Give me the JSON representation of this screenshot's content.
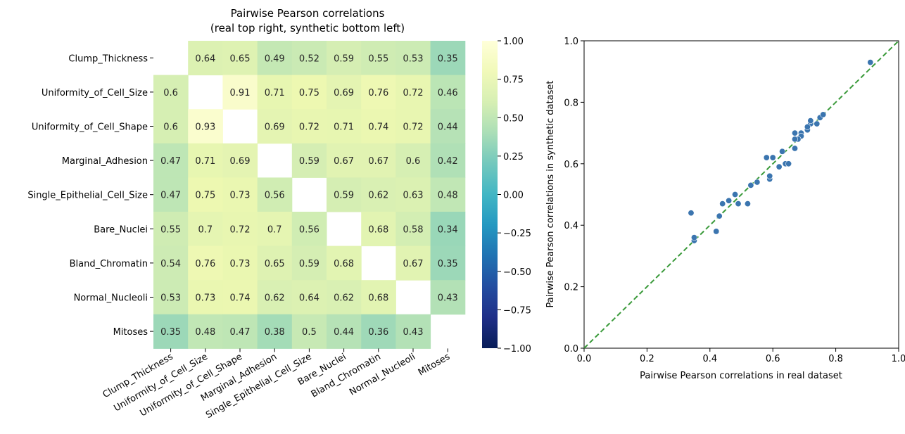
{
  "chart_data": [
    {
      "type": "heatmap",
      "title": "Pairwise Pearson correlations",
      "subtitle": "(real top right, synthetic bottom left)",
      "row_labels": [
        "Clump_Thickness",
        "Uniformity_of_Cell_Size",
        "Uniformity_of_Cell_Shape",
        "Marginal_Adhesion",
        "Single_Epithelial_Cell_Size",
        "Bare_Nuclei",
        "Bland_Chromatin",
        "Normal_Nucleoli",
        "Mitoses"
      ],
      "col_labels": [
        "Clump_Thickness",
        "Uniformity_of_Cell_Size",
        "Uniformity_of_Cell_Shape",
        "Marginal_Adhesion",
        "Single_Epithelial_Cell_Size",
        "Bare_Nuclei",
        "Bland_Chromatin",
        "Normal_Nucleoli",
        "Mitoses"
      ],
      "values": [
        [
          null,
          0.64,
          0.65,
          0.49,
          0.52,
          0.59,
          0.55,
          0.53,
          0.35
        ],
        [
          0.6,
          null,
          0.91,
          0.71,
          0.75,
          0.69,
          0.76,
          0.72,
          0.46
        ],
        [
          0.6,
          0.93,
          null,
          0.69,
          0.72,
          0.71,
          0.74,
          0.72,
          0.44
        ],
        [
          0.47,
          0.71,
          0.69,
          null,
          0.59,
          0.67,
          0.67,
          0.6,
          0.42
        ],
        [
          0.47,
          0.75,
          0.73,
          0.56,
          null,
          0.59,
          0.62,
          0.63,
          0.48
        ],
        [
          0.55,
          0.7,
          0.72,
          0.7,
          0.56,
          null,
          0.68,
          0.58,
          0.34
        ],
        [
          0.54,
          0.76,
          0.73,
          0.65,
          0.59,
          0.68,
          null,
          0.67,
          0.35
        ],
        [
          0.53,
          0.73,
          0.74,
          0.62,
          0.64,
          0.62,
          0.68,
          null,
          0.43
        ],
        [
          0.35,
          0.48,
          0.47,
          0.38,
          0.5,
          0.44,
          0.36,
          0.43,
          null
        ]
      ],
      "colorbar": {
        "range": [
          -1.0,
          1.0
        ],
        "ticks": [
          "1.00",
          "0.75",
          "0.50",
          "0.25",
          "0.00",
          "−0.25",
          "−0.50",
          "−0.75",
          "−1.00"
        ],
        "colormap": "YlGnBu"
      }
    },
    {
      "type": "scatter",
      "xlabel": "Pairwise Pearson correlations in real dataset",
      "ylabel": "Pairwise Pearson correlations in synthetic dataset",
      "xlim": [
        0.0,
        1.0
      ],
      "ylim": [
        0.0,
        1.0
      ],
      "xticks": [
        "0.0",
        "0.2",
        "0.4",
        "0.6",
        "0.8",
        "1.0"
      ],
      "yticks": [
        "0.0",
        "0.2",
        "0.4",
        "0.6",
        "0.8",
        "1.0"
      ],
      "reference_line": {
        "style": "dashed",
        "color": "#3a9a3a"
      },
      "point_color": "#3b75af"
    }
  ]
}
